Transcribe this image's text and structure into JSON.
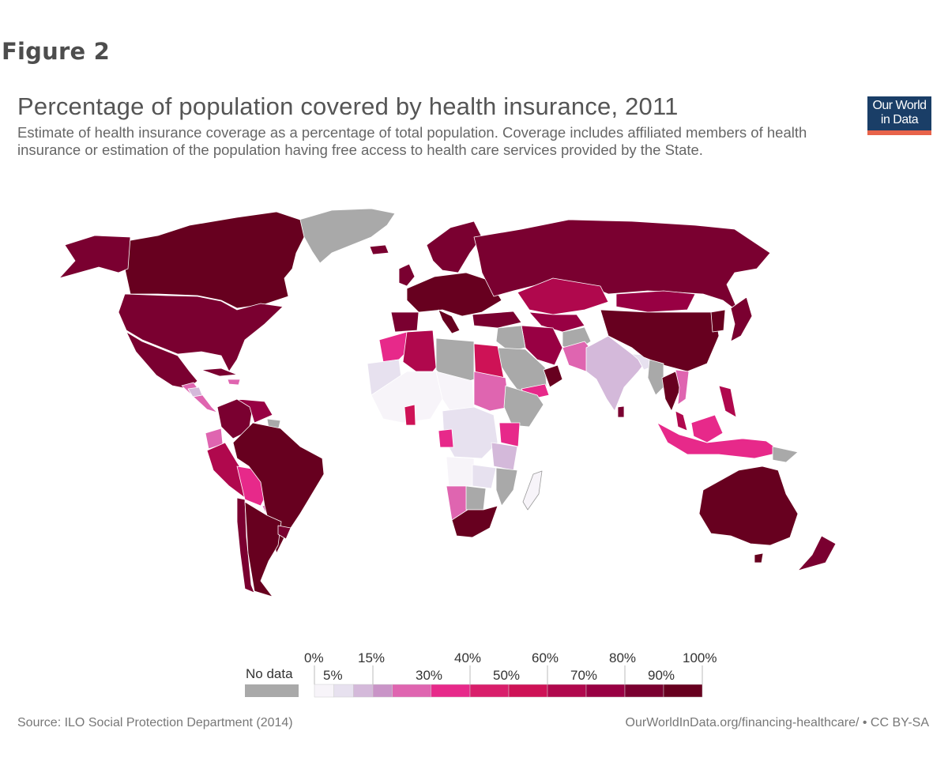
{
  "figure_label": "Figure 2",
  "title": "Percentage of population covered by health insurance, 2011",
  "subtitle": "Estimate of health insurance coverage as a percentage of total population. Coverage includes affiliated members of health insurance or estimation of the population having free access to health care services provided by the State.",
  "logo": {
    "line1": "Our World",
    "line2": "in Data",
    "bg": "#1a3e67",
    "accent": "#e8634a"
  },
  "legend": {
    "no_data_label": "No data",
    "no_data_color": "#a9a9a9",
    "bins": [
      {
        "from": 0,
        "to": 5,
        "color": "#f7f4f9"
      },
      {
        "from": 5,
        "to": 10,
        "color": "#e7e1ef"
      },
      {
        "from": 10,
        "to": 15,
        "color": "#d4b9da"
      },
      {
        "from": 15,
        "to": 20,
        "color": "#c994c7"
      },
      {
        "from": 20,
        "to": 30,
        "color": "#df65b0"
      },
      {
        "from": 30,
        "to": 40,
        "color": "#e7298a"
      },
      {
        "from": 40,
        "to": 50,
        "color": "#d91e6b"
      },
      {
        "from": 50,
        "to": 60,
        "color": "#ce1256"
      },
      {
        "from": 60,
        "to": 70,
        "color": "#b0084d"
      },
      {
        "from": 70,
        "to": 80,
        "color": "#980043"
      },
      {
        "from": 80,
        "to": 90,
        "color": "#7a0030"
      },
      {
        "from": 90,
        "to": 100,
        "color": "#67001f"
      }
    ],
    "upper_labels": [
      "0%",
      "15%",
      "40%",
      "60%",
      "80%",
      "100%"
    ],
    "lower_labels": [
      "5%",
      "30%",
      "50%",
      "70%",
      "90%"
    ]
  },
  "source": "Source: ILO Social Protection Department (2014)",
  "url": "OurWorldInData.org/financing-healthcare/ • CC BY-SA"
}
